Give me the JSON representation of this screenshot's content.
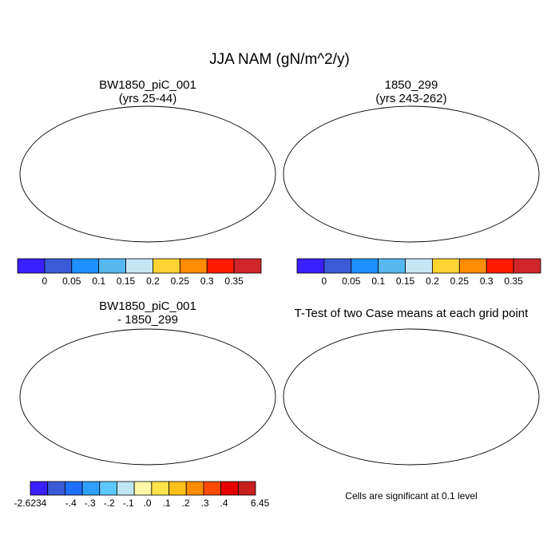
{
  "main_title": "JJA NAM (gN/m^2/y)",
  "panels": [
    {
      "id": "case1",
      "title_line1": "BW1850_piC_001",
      "title_line2": "(yrs 25-44)"
    },
    {
      "id": "case2",
      "title_line1": "1850_299",
      "title_line2": "(yrs 243-262)"
    },
    {
      "id": "diff",
      "title_line1": "BW1850_piC_001",
      "title_line2": "- 1850_299"
    },
    {
      "id": "ttest",
      "title_line1": "T-Test of two Case means at each grid point",
      "title_line2": ""
    }
  ],
  "colorbar_abs": {
    "colors": [
      "#3a1fff",
      "#3a5ad6",
      "#1e90ff",
      "#56b8ee",
      "#c6e6f5",
      "#fed433",
      "#ff8c00",
      "#ff1a00",
      "#d0262a"
    ],
    "labels": [
      "0",
      "0.05",
      "0.1",
      "0.15",
      "0.2",
      "0.25",
      "0.3",
      "0.35"
    ]
  },
  "colorbar_diff": {
    "colors": [
      "#3a1fff",
      "#3a5ad6",
      "#1e6fff",
      "#2ea0ff",
      "#5cc8ff",
      "#bfe4f2",
      "#fff7a8",
      "#ffe34a",
      "#ffc01a",
      "#ff8c00",
      "#ff4a00",
      "#e60000",
      "#c81e1e"
    ],
    "labels": [
      "-2.6234",
      "-.4",
      "-.3",
      "-.2",
      "-.1",
      ".0",
      ".1",
      ".2",
      ".3",
      ".4",
      "6.45"
    ]
  },
  "significance_note": "Cells are significant at 0.1 level",
  "colors": {
    "land_low": "#3b5fd8",
    "sig_mark": "#e60000",
    "diff_land": "#fff7a8",
    "diff_ocean": "#ffffff"
  }
}
